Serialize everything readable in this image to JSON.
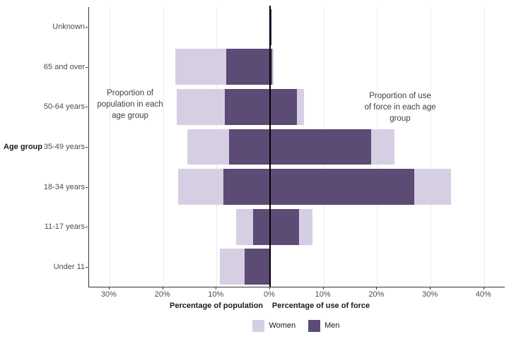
{
  "chart_data": {
    "type": "bar",
    "subtype": "diverging-stacked-horizontal",
    "title": "",
    "y_axis_title": "Age group",
    "left_axis_title": "Percentage of population",
    "right_axis_title": "Percentage of use of force",
    "legend_position": "bottom",
    "grid": "vertical-only",
    "x_range_left_pct": [
      0,
      33
    ],
    "x_range_right_pct": [
      0,
      44
    ],
    "rows": [
      {
        "label": "Unknown",
        "population": {
          "women": 0,
          "men": 0
        },
        "use_of_force": {
          "women": 0.1,
          "men": 0.2
        }
      },
      {
        "label": "65 and over",
        "population": {
          "women": 9.5,
          "men": 8.2
        },
        "use_of_force": {
          "women": 0.2,
          "men": 0.4
        }
      },
      {
        "label": "50-64 years",
        "population": {
          "women": 8.9,
          "men": 8.5
        },
        "use_of_force": {
          "women": 1.3,
          "men": 5.0
        }
      },
      {
        "label": "35-49 years",
        "population": {
          "women": 7.8,
          "men": 7.7
        },
        "use_of_force": {
          "women": 4.4,
          "men": 18.9
        }
      },
      {
        "label": "18-34 years",
        "population": {
          "women": 8.5,
          "men": 8.7
        },
        "use_of_force": {
          "women": 6.8,
          "men": 27.0
        }
      },
      {
        "label": "11-17 years",
        "population": {
          "women": 3.2,
          "men": 3.2
        },
        "use_of_force": {
          "women": 2.5,
          "men": 5.4
        }
      },
      {
        "label": "Under 11",
        "population": {
          "women": 4.6,
          "men": 4.8
        },
        "use_of_force": {
          "women": 0,
          "men": 0
        }
      }
    ],
    "x_ticks": [
      {
        "label": "30%",
        "value": -30
      },
      {
        "label": "20%",
        "value": -20
      },
      {
        "label": "10%",
        "value": -10
      },
      {
        "label": "0%",
        "value": 0
      },
      {
        "label": "10%",
        "value": 10
      },
      {
        "label": "20%",
        "value": 20
      },
      {
        "label": "30%",
        "value": 30
      },
      {
        "label": "40%",
        "value": 40
      }
    ],
    "annotations": {
      "left": {
        "lines": [
          "Proportion of",
          "population in each",
          "age group"
        ]
      },
      "right": {
        "lines": [
          "Proportion of use",
          "of force in each age",
          "group"
        ]
      }
    },
    "legend": [
      {
        "label": "Women",
        "color": "#d6cfe3"
      },
      {
        "label": "Men",
        "color": "#5c4b75"
      }
    ],
    "colors": {
      "women": "#d6cfe3",
      "men": "#5c4b75",
      "zero_line": "#000000",
      "gridline": "#ebebeb",
      "axis_line": "#333333"
    }
  }
}
